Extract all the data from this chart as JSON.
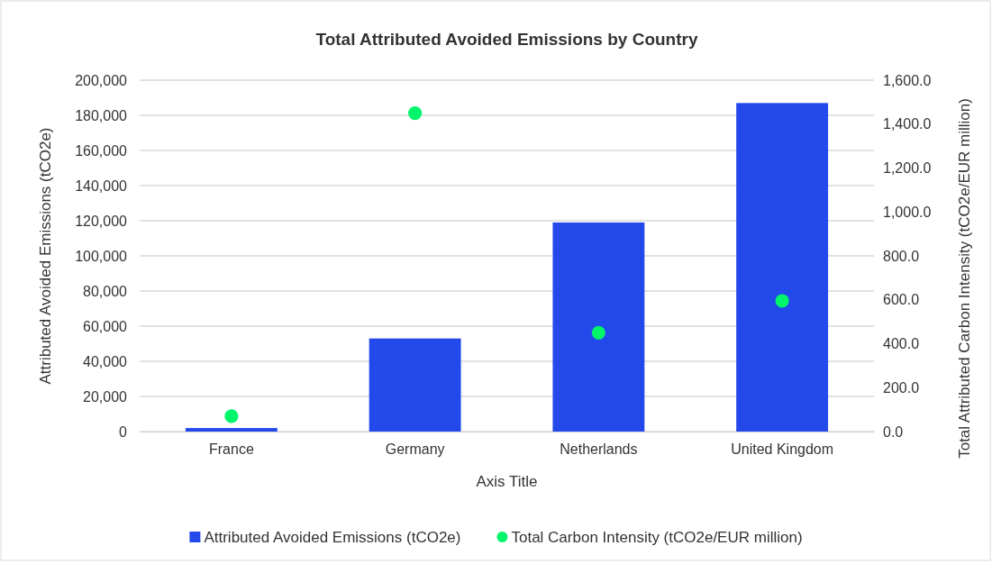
{
  "chart_data": {
    "type": "bar",
    "title": "Total Attributed Avoided Emissions by Country",
    "xlabel": "Axis Title",
    "ylabel": "Attributed Avoided Emissions (tCO2e)",
    "y2label": "Total Attributed Carbon Intensity (tCO2e/EUR million)",
    "categories": [
      "France",
      "Germany",
      "Netherlands",
      "United Kingdom"
    ],
    "series": [
      {
        "name": "Attributed Avoided Emissions (tCO2e)",
        "color": "#2449ea",
        "values": [
          2000,
          53000,
          119000,
          187000
        ]
      },
      {
        "name": "Total Carbon Intensity (tCO2e/EUR million)",
        "type": "scatter",
        "axis": "y2",
        "color": "#00f56a",
        "values": [
          70,
          1450,
          450,
          595
        ]
      }
    ],
    "ylim": [
      0,
      200000
    ],
    "yticks": [
      {
        "value": 0,
        "label": "0"
      },
      {
        "value": 20000,
        "label": "20,000"
      },
      {
        "value": 40000,
        "label": "40,000"
      },
      {
        "value": 60000,
        "label": "60,000"
      },
      {
        "value": 80000,
        "label": "80,000"
      },
      {
        "value": 100000,
        "label": "100,000"
      },
      {
        "value": 120000,
        "label": "120,000"
      },
      {
        "value": 140000,
        "label": "140,000"
      },
      {
        "value": 160000,
        "label": "160,000"
      },
      {
        "value": 180000,
        "label": "180,000"
      },
      {
        "value": 200000,
        "label": "200,000"
      }
    ],
    "y2lim": [
      0,
      1600
    ],
    "y2ticks": [
      {
        "value": 0,
        "label": "0.0"
      },
      {
        "value": 200,
        "label": "200.0"
      },
      {
        "value": 400,
        "label": "400.0"
      },
      {
        "value": 600,
        "label": "600.0"
      },
      {
        "value": 800,
        "label": "800.0"
      },
      {
        "value": 1000,
        "label": "1,000.0"
      },
      {
        "value": 1200,
        "label": "1,200.0"
      },
      {
        "value": 1400,
        "label": "1,400.0"
      },
      {
        "value": 1600,
        "label": "1,600.0"
      }
    ],
    "grid": "y",
    "legend": "bottom",
    "marker": "circle"
  }
}
